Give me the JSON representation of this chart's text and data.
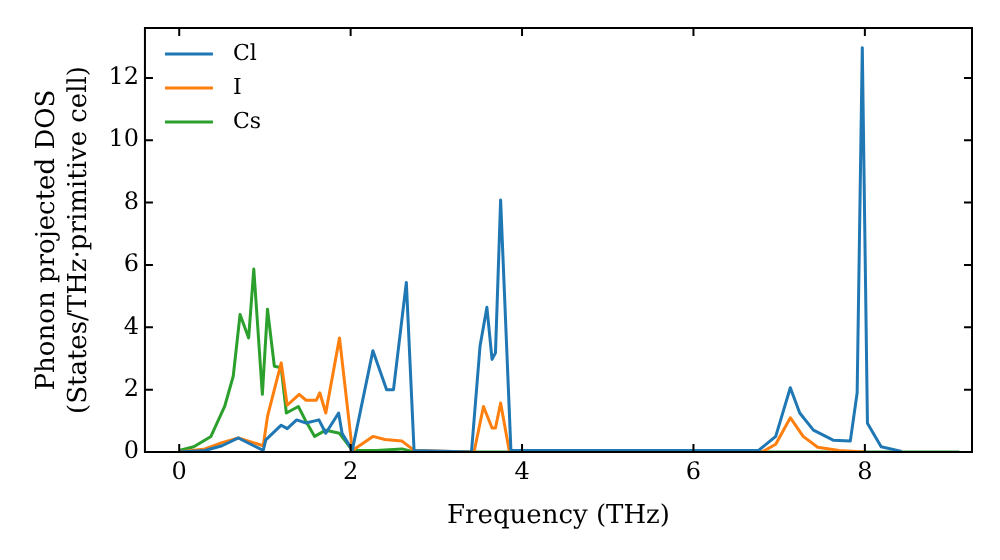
{
  "chart_data": {
    "type": "line",
    "xlabel": "Frequency (THz)",
    "ylabel": "Phonon projected DOS\n(States/THz·primitive cell)",
    "xlim": [
      -0.4,
      9.25
    ],
    "ylim": [
      0,
      13.6
    ],
    "xticks": [
      0,
      2,
      4,
      6,
      8
    ],
    "yticks": [
      0,
      2,
      4,
      6,
      8,
      10,
      12
    ],
    "grid": false,
    "legend": "top left",
    "marker": "none",
    "line_style": "solid",
    "series": [
      {
        "name": "Cl",
        "color": "#1f77b4",
        "x": [
          0,
          0.3,
          0.5,
          0.69,
          0.98,
          1.01,
          1.19,
          1.26,
          1.37,
          1.48,
          1.63,
          1.71,
          1.86,
          1.9,
          2.02,
          2.26,
          2.42,
          2.5,
          2.65,
          2.74,
          3.41,
          3.51,
          3.59,
          3.65,
          3.69,
          3.75,
          3.87,
          6.76,
          6.96,
          7.13,
          7.24,
          7.4,
          7.63,
          7.83,
          7.91,
          7.97,
          8.03,
          8.19,
          8.43
        ],
        "values": [
          0,
          0.05,
          0.2,
          0.45,
          0.05,
          0.39,
          0.86,
          0.75,
          1.03,
          0.93,
          1.03,
          0.6,
          1.25,
          0.6,
          0.06,
          3.25,
          2.0,
          2.0,
          5.44,
          0.05,
          0,
          3.4,
          4.64,
          2.97,
          3.18,
          8.08,
          0.06,
          0.05,
          0.5,
          2.06,
          1.25,
          0.7,
          0.38,
          0.35,
          1.9,
          12.97,
          0.92,
          0.17,
          0.02
        ]
      },
      {
        "name": "I",
        "color": "#ff7f0e",
        "x": [
          0,
          0.3,
          0.5,
          0.69,
          0.98,
          1.03,
          1.19,
          1.26,
          1.4,
          1.48,
          1.6,
          1.64,
          1.71,
          1.87,
          2.02,
          2.26,
          2.4,
          2.6,
          2.74,
          3.44,
          3.55,
          3.65,
          3.69,
          3.75,
          3.85,
          6.8,
          6.96,
          7.13,
          7.28,
          7.45,
          7.7,
          8.0
        ],
        "values": [
          0,
          0.1,
          0.3,
          0.45,
          0.2,
          1.14,
          2.86,
          1.5,
          1.85,
          1.66,
          1.66,
          1.9,
          1.25,
          3.66,
          0.05,
          0.5,
          0.4,
          0.35,
          0.05,
          0,
          1.46,
          0.77,
          0.77,
          1.57,
          0.05,
          0,
          0.25,
          1.1,
          0.5,
          0.15,
          0.05,
          0
        ]
      },
      {
        "name": "Cs",
        "color": "#2ca02c",
        "x": [
          0,
          0.17,
          0.37,
          0.53,
          0.63,
          0.71,
          0.81,
          0.87,
          0.97,
          1.03,
          1.11,
          1.19,
          1.25,
          1.39,
          1.47,
          1.58,
          1.71,
          1.87,
          2.02,
          2.3,
          2.6,
          2.74,
          9.1
        ],
        "values": [
          0.05,
          0.17,
          0.5,
          1.46,
          2.43,
          4.41,
          3.66,
          5.87,
          1.85,
          4.58,
          2.75,
          2.7,
          1.25,
          1.46,
          1.03,
          0.5,
          0.7,
          0.6,
          0.05,
          0.05,
          0.1,
          0,
          0
        ]
      }
    ]
  }
}
